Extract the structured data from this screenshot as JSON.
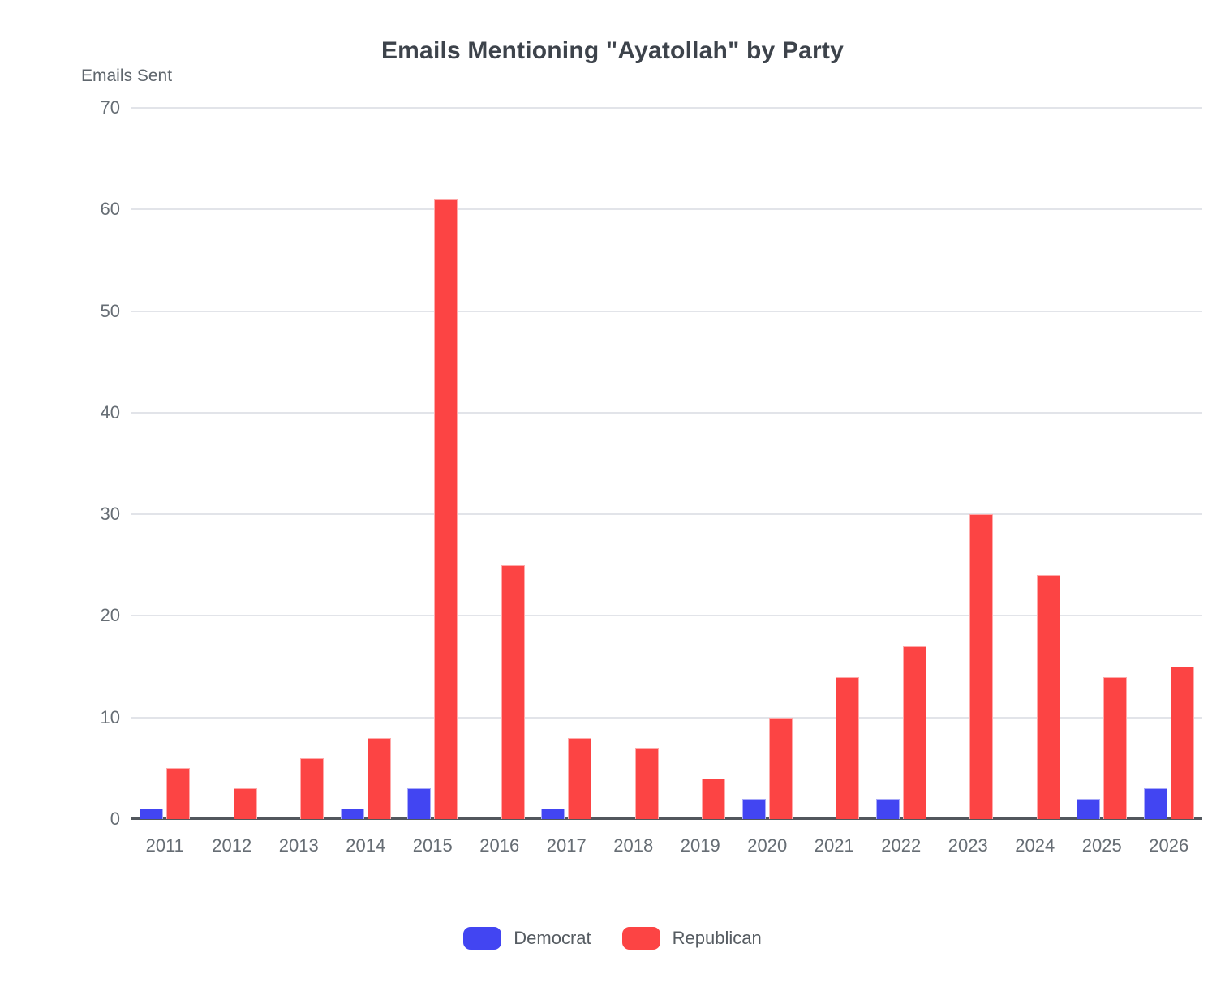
{
  "title": "Emails Mentioning \"Ayatollah\" by Party",
  "chart_data": {
    "type": "bar",
    "title": "Emails Mentioning \"Ayatollah\" by Party",
    "xlabel": "",
    "ylabel": "Emails Sent",
    "categories": [
      "2011",
      "2012",
      "2013",
      "2014",
      "2015",
      "2016",
      "2017",
      "2018",
      "2019",
      "2020",
      "2021",
      "2022",
      "2023",
      "2024",
      "2025",
      "2026"
    ],
    "series": [
      {
        "name": "Democrat",
        "color": "#4245f2",
        "values": [
          1,
          0,
          0,
          1,
          3,
          0,
          1,
          0,
          0,
          2,
          0,
          2,
          0,
          0,
          2,
          3
        ]
      },
      {
        "name": "Republican",
        "color": "#fc4444",
        "values": [
          5,
          3,
          6,
          8,
          61,
          25,
          8,
          7,
          4,
          10,
          14,
          17,
          30,
          24,
          14,
          15
        ]
      }
    ],
    "ylim": [
      0,
      70
    ],
    "yticks": [
      0,
      10,
      20,
      30,
      40,
      50,
      60,
      70
    ],
    "grid": true,
    "legend_position": "bottom"
  },
  "colors": {
    "democrat": "#4245f2",
    "republican": "#fc4444",
    "gridline": "#e2e4e9",
    "axis_line": "#52575d",
    "tick_text": "#666d74",
    "title_text": "#3d434b"
  }
}
